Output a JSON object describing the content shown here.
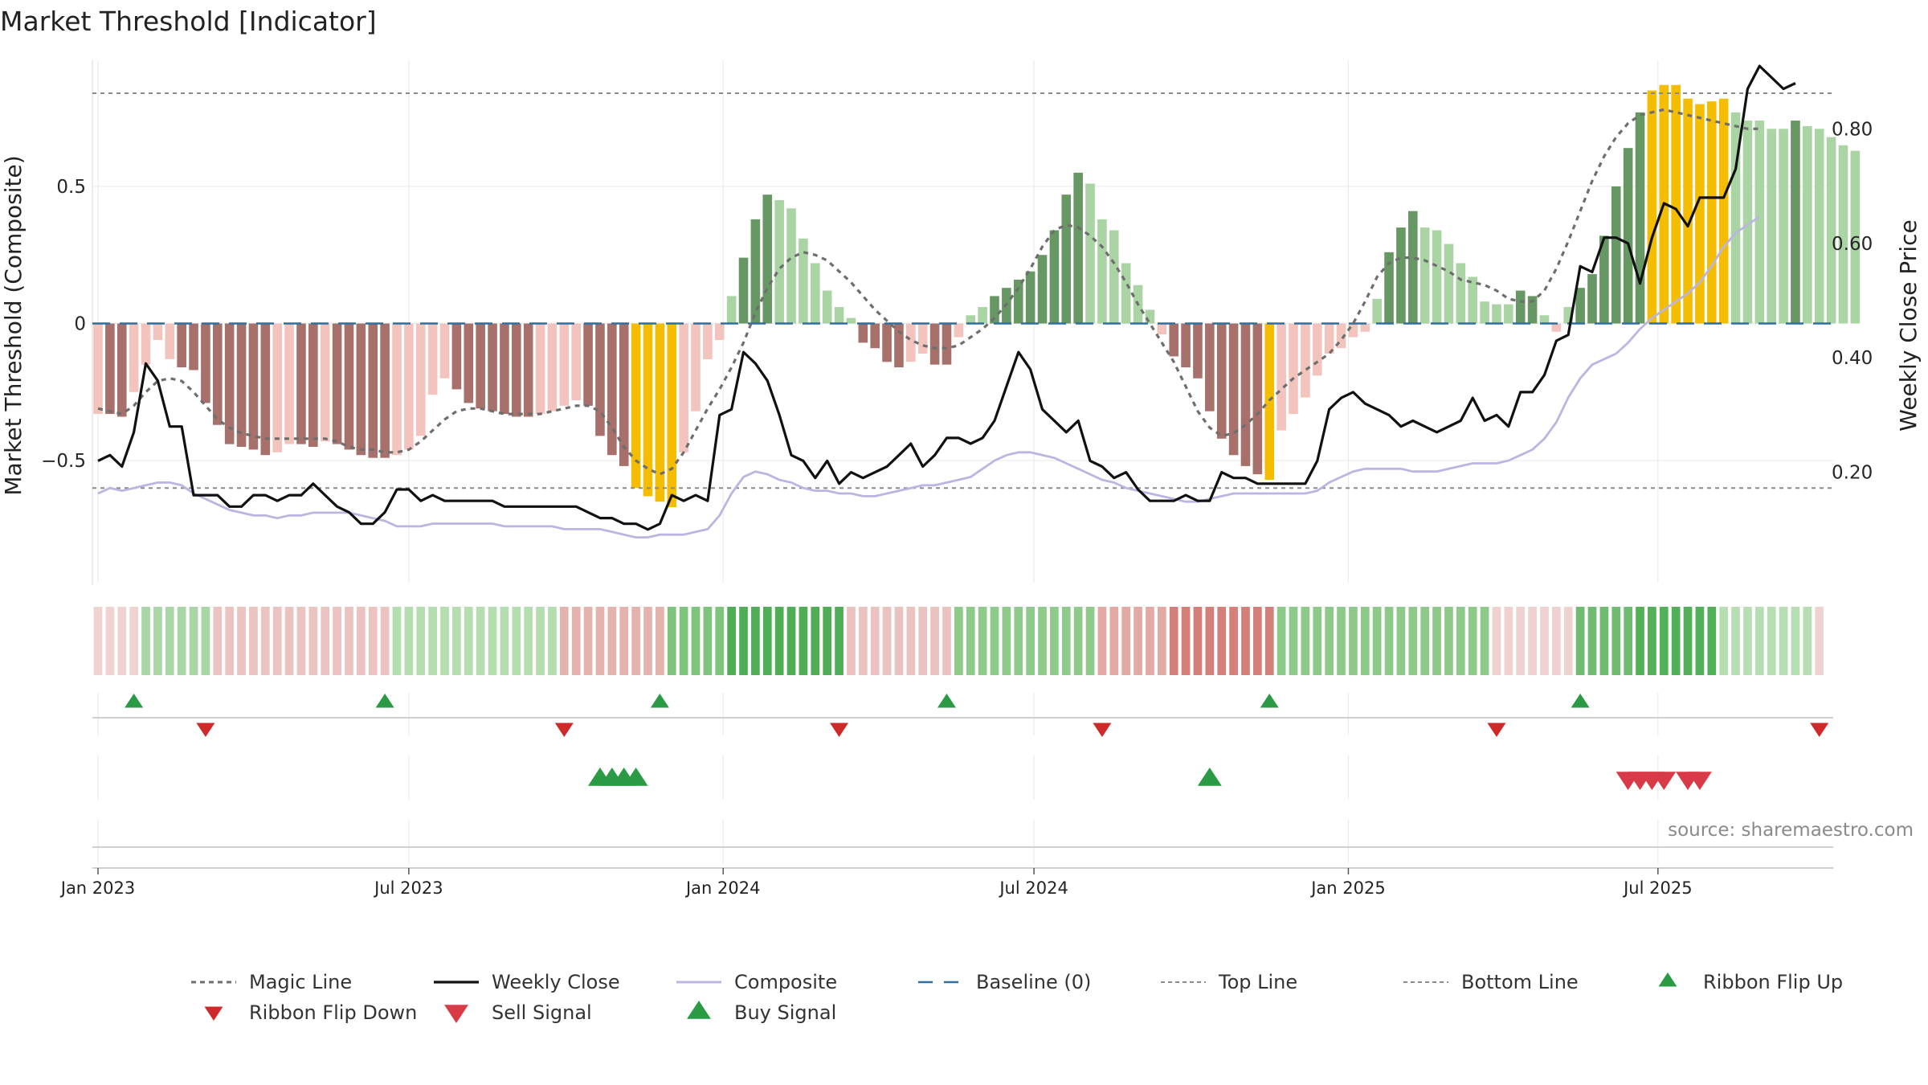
{
  "chart_data": {
    "type": "bar",
    "title": "Market Threshold [Indicator]",
    "ylabel": "Market Threshold (Composite)",
    "y2label": "Weekly Close Price",
    "ylim": [
      -0.96,
      0.96
    ],
    "y2lim": [
      0.0,
      0.92
    ],
    "yticks": [
      {
        "v": 0.5,
        "label": "0.5"
      },
      {
        "v": 0,
        "label": "0"
      },
      {
        "v": -0.5,
        "label": "−0.5"
      }
    ],
    "y2ticks": [
      {
        "v": 0.8,
        "label": "0.80"
      },
      {
        "v": 0.6,
        "label": "0.60"
      },
      {
        "v": 0.4,
        "label": "0.40"
      },
      {
        "v": 0.2,
        "label": "0.20"
      }
    ],
    "xticks": [
      {
        "w": 0,
        "label": "Jan 2023"
      },
      {
        "w": 26,
        "label": "Jul 2023"
      },
      {
        "w": 52.3,
        "label": "Jan 2024"
      },
      {
        "w": 78.3,
        "label": "Jul 2024"
      },
      {
        "w": 104.6,
        "label": "Jan 2025"
      },
      {
        "w": 130.5,
        "label": "Jul 2025"
      }
    ],
    "top_line": 0.84,
    "bottom_line": -0.6,
    "composite": [
      -0.62,
      -0.6,
      -0.61,
      -0.6,
      -0.59,
      -0.58,
      -0.58,
      -0.59,
      -0.62,
      -0.64,
      -0.66,
      -0.68,
      -0.69,
      -0.7,
      -0.7,
      -0.71,
      -0.7,
      -0.7,
      -0.69,
      -0.69,
      -0.69,
      -0.69,
      -0.7,
      -0.71,
      -0.72,
      -0.74,
      -0.74,
      -0.74,
      -0.73,
      -0.73,
      -0.73,
      -0.73,
      -0.73,
      -0.73,
      -0.74,
      -0.74,
      -0.74,
      -0.74,
      -0.74,
      -0.75,
      -0.75,
      -0.75,
      -0.75,
      -0.76,
      -0.77,
      -0.78,
      -0.78,
      -0.77,
      -0.77,
      -0.77,
      -0.76,
      -0.75,
      -0.7,
      -0.62,
      -0.56,
      -0.54,
      -0.55,
      -0.57,
      -0.58,
      -0.6,
      -0.61,
      -0.61,
      -0.62,
      -0.62,
      -0.63,
      -0.63,
      -0.62,
      -0.61,
      -0.6,
      -0.59,
      -0.59,
      -0.58,
      -0.57,
      -0.56,
      -0.53,
      -0.5,
      -0.48,
      -0.47,
      -0.47,
      -0.48,
      -0.49,
      -0.51,
      -0.53,
      -0.55,
      -0.57,
      -0.58,
      -0.6,
      -0.61,
      -0.62,
      -0.63,
      -0.64,
      -0.65,
      -0.65,
      -0.64,
      -0.63,
      -0.62,
      -0.62,
      -0.62,
      -0.62,
      -0.62,
      -0.62,
      -0.62,
      -0.61,
      -0.58,
      -0.56,
      -0.54,
      -0.53,
      -0.53,
      -0.53,
      -0.53,
      -0.54,
      -0.54,
      -0.54,
      -0.53,
      -0.52,
      -0.51,
      -0.51,
      -0.51,
      -0.5,
      -0.48,
      -0.46,
      -0.42,
      -0.36,
      -0.27,
      -0.2,
      -0.15,
      -0.13,
      -0.11,
      -0.07,
      -0.02,
      0.02,
      0.05,
      0.08,
      0.11,
      0.15,
      0.21,
      0.28,
      0.33,
      0.36,
      0.39
    ],
    "magic_line": [
      -0.31,
      -0.32,
      -0.33,
      -0.3,
      -0.25,
      -0.21,
      -0.2,
      -0.21,
      -0.25,
      -0.3,
      -0.35,
      -0.38,
      -0.4,
      -0.41,
      -0.42,
      -0.42,
      -0.42,
      -0.42,
      -0.42,
      -0.42,
      -0.43,
      -0.45,
      -0.46,
      -0.46,
      -0.47,
      -0.47,
      -0.46,
      -0.43,
      -0.39,
      -0.35,
      -0.32,
      -0.31,
      -0.31,
      -0.32,
      -0.33,
      -0.33,
      -0.33,
      -0.33,
      -0.32,
      -0.31,
      -0.3,
      -0.3,
      -0.32,
      -0.38,
      -0.45,
      -0.5,
      -0.53,
      -0.55,
      -0.53,
      -0.47,
      -0.39,
      -0.31,
      -0.24,
      -0.16,
      -0.07,
      0.04,
      0.13,
      0.2,
      0.24,
      0.26,
      0.25,
      0.23,
      0.19,
      0.15,
      0.1,
      0.05,
      0.01,
      -0.03,
      -0.06,
      -0.08,
      -0.09,
      -0.09,
      -0.08,
      -0.05,
      -0.02,
      0.02,
      0.07,
      0.13,
      0.2,
      0.28,
      0.34,
      0.36,
      0.35,
      0.32,
      0.28,
      0.22,
      0.15,
      0.07,
      0.0,
      -0.07,
      -0.14,
      -0.23,
      -0.32,
      -0.38,
      -0.41,
      -0.4,
      -0.37,
      -0.33,
      -0.28,
      -0.24,
      -0.2,
      -0.17,
      -0.14,
      -0.11,
      -0.06,
      0.0,
      0.08,
      0.17,
      0.22,
      0.24,
      0.24,
      0.23,
      0.21,
      0.19,
      0.16,
      0.15,
      0.14,
      0.12,
      0.09,
      0.08,
      0.08,
      0.12,
      0.2,
      0.3,
      0.41,
      0.52,
      0.61,
      0.68,
      0.73,
      0.76,
      0.77,
      0.78,
      0.77,
      0.76,
      0.75,
      0.74,
      0.73,
      0.72,
      0.71,
      0.71
    ],
    "price_series": [
      0.22,
      0.23,
      0.21,
      0.27,
      0.39,
      0.36,
      0.28,
      0.28,
      0.16,
      0.16,
      0.16,
      0.14,
      0.14,
      0.16,
      0.16,
      0.15,
      0.16,
      0.16,
      0.18,
      0.16,
      0.14,
      0.13,
      0.11,
      0.11,
      0.13,
      0.17,
      0.17,
      0.15,
      0.16,
      0.15,
      0.15,
      0.15,
      0.15,
      0.15,
      0.14,
      0.14,
      0.14,
      0.14,
      0.14,
      0.14,
      0.14,
      0.13,
      0.12,
      0.12,
      0.11,
      0.11,
      0.1,
      0.11,
      0.16,
      0.15,
      0.16,
      0.15,
      0.3,
      0.31,
      0.41,
      0.39,
      0.36,
      0.3,
      0.23,
      0.22,
      0.19,
      0.22,
      0.18,
      0.2,
      0.19,
      0.2,
      0.21,
      0.23,
      0.25,
      0.21,
      0.23,
      0.26,
      0.26,
      0.25,
      0.26,
      0.29,
      0.35,
      0.41,
      0.38,
      0.31,
      0.29,
      0.27,
      0.29,
      0.22,
      0.21,
      0.19,
      0.2,
      0.17,
      0.15,
      0.15,
      0.15,
      0.16,
      0.15,
      0.15,
      0.2,
      0.19,
      0.19,
      0.18,
      0.18,
      0.18,
      0.18,
      0.18,
      0.22,
      0.31,
      0.33,
      0.34,
      0.32,
      0.31,
      0.3,
      0.28,
      0.29,
      0.28,
      0.27,
      0.28,
      0.29,
      0.33,
      0.29,
      0.3,
      0.28,
      0.34,
      0.34,
      0.37,
      0.43,
      0.44,
      0.56,
      0.55,
      0.61,
      0.61,
      0.6,
      0.53,
      0.61,
      0.67,
      0.66,
      0.63,
      0.68,
      0.68,
      0.68,
      0.73,
      0.87,
      0.91,
      0.89,
      0.87,
      0.88
    ],
    "bars": [
      {
        "v": -0.33,
        "c": "#f2c4bd"
      },
      {
        "v": -0.33,
        "c": "#a8706a"
      },
      {
        "v": -0.34,
        "c": "#a8706a"
      },
      {
        "v": -0.25,
        "c": "#f2c4bd"
      },
      {
        "v": -0.15,
        "c": "#f2c4bd"
      },
      {
        "v": -0.06,
        "c": "#f2c4bd"
      },
      {
        "v": -0.13,
        "c": "#f2c4bd"
      },
      {
        "v": -0.16,
        "c": "#a8706a"
      },
      {
        "v": -0.17,
        "c": "#a8706a"
      },
      {
        "v": -0.29,
        "c": "#a8706a"
      },
      {
        "v": -0.37,
        "c": "#a8706a"
      },
      {
        "v": -0.44,
        "c": "#a8706a"
      },
      {
        "v": -0.45,
        "c": "#a8706a"
      },
      {
        "v": -0.46,
        "c": "#a8706a"
      },
      {
        "v": -0.48,
        "c": "#a8706a"
      },
      {
        "v": -0.47,
        "c": "#f2c4bd"
      },
      {
        "v": -0.44,
        "c": "#f2c4bd"
      },
      {
        "v": -0.44,
        "c": "#a8706a"
      },
      {
        "v": -0.45,
        "c": "#a8706a"
      },
      {
        "v": -0.43,
        "c": "#f2c4bd"
      },
      {
        "v": -0.44,
        "c": "#a8706a"
      },
      {
        "v": -0.46,
        "c": "#a8706a"
      },
      {
        "v": -0.48,
        "c": "#a8706a"
      },
      {
        "v": -0.49,
        "c": "#a8706a"
      },
      {
        "v": -0.49,
        "c": "#a8706a"
      },
      {
        "v": -0.48,
        "c": "#f2c4bd"
      },
      {
        "v": -0.46,
        "c": "#f2c4bd"
      },
      {
        "v": -0.41,
        "c": "#f2c4bd"
      },
      {
        "v": -0.26,
        "c": "#f2c4bd"
      },
      {
        "v": -0.2,
        "c": "#f2c4bd"
      },
      {
        "v": -0.24,
        "c": "#a8706a"
      },
      {
        "v": -0.29,
        "c": "#a8706a"
      },
      {
        "v": -0.31,
        "c": "#a8706a"
      },
      {
        "v": -0.32,
        "c": "#a8706a"
      },
      {
        "v": -0.33,
        "c": "#a8706a"
      },
      {
        "v": -0.34,
        "c": "#a8706a"
      },
      {
        "v": -0.34,
        "c": "#a8706a"
      },
      {
        "v": -0.33,
        "c": "#f2c4bd"
      },
      {
        "v": -0.32,
        "c": "#f2c4bd"
      },
      {
        "v": -0.3,
        "c": "#f2c4bd"
      },
      {
        "v": -0.28,
        "c": "#f2c4bd"
      },
      {
        "v": -0.3,
        "c": "#a8706a"
      },
      {
        "v": -0.41,
        "c": "#a8706a"
      },
      {
        "v": -0.48,
        "c": "#a8706a"
      },
      {
        "v": -0.52,
        "c": "#a8706a"
      },
      {
        "v": -0.6,
        "c": "#f5bd00"
      },
      {
        "v": -0.63,
        "c": "#f5bd00"
      },
      {
        "v": -0.65,
        "c": "#f5bd00"
      },
      {
        "v": -0.67,
        "c": "#f5bd00"
      },
      {
        "v": -0.47,
        "c": "#f2c4bd"
      },
      {
        "v": -0.32,
        "c": "#f2c4bd"
      },
      {
        "v": -0.13,
        "c": "#f2c4bd"
      },
      {
        "v": -0.06,
        "c": "#f2c4bd"
      },
      {
        "v": 0.1,
        "c": "#abd4a4"
      },
      {
        "v": 0.24,
        "c": "#679762"
      },
      {
        "v": 0.38,
        "c": "#679762"
      },
      {
        "v": 0.47,
        "c": "#679762"
      },
      {
        "v": 0.45,
        "c": "#abd4a4"
      },
      {
        "v": 0.42,
        "c": "#abd4a4"
      },
      {
        "v": 0.31,
        "c": "#abd4a4"
      },
      {
        "v": 0.22,
        "c": "#abd4a4"
      },
      {
        "v": 0.12,
        "c": "#abd4a4"
      },
      {
        "v": 0.06,
        "c": "#abd4a4"
      },
      {
        "v": 0.02,
        "c": "#abd4a4"
      },
      {
        "v": -0.07,
        "c": "#a8706a"
      },
      {
        "v": -0.09,
        "c": "#a8706a"
      },
      {
        "v": -0.14,
        "c": "#a8706a"
      },
      {
        "v": -0.16,
        "c": "#a8706a"
      },
      {
        "v": -0.14,
        "c": "#f2c4bd"
      },
      {
        "v": -0.11,
        "c": "#f2c4bd"
      },
      {
        "v": -0.15,
        "c": "#a8706a"
      },
      {
        "v": -0.15,
        "c": "#a8706a"
      },
      {
        "v": -0.05,
        "c": "#f2c4bd"
      },
      {
        "v": 0.03,
        "c": "#abd4a4"
      },
      {
        "v": 0.06,
        "c": "#abd4a4"
      },
      {
        "v": 0.1,
        "c": "#679762"
      },
      {
        "v": 0.13,
        "c": "#679762"
      },
      {
        "v": 0.16,
        "c": "#679762"
      },
      {
        "v": 0.19,
        "c": "#679762"
      },
      {
        "v": 0.25,
        "c": "#679762"
      },
      {
        "v": 0.34,
        "c": "#679762"
      },
      {
        "v": 0.47,
        "c": "#679762"
      },
      {
        "v": 0.55,
        "c": "#679762"
      },
      {
        "v": 0.51,
        "c": "#abd4a4"
      },
      {
        "v": 0.38,
        "c": "#abd4a4"
      },
      {
        "v": 0.34,
        "c": "#abd4a4"
      },
      {
        "v": 0.22,
        "c": "#abd4a4"
      },
      {
        "v": 0.14,
        "c": "#abd4a4"
      },
      {
        "v": 0.05,
        "c": "#abd4a4"
      },
      {
        "v": -0.04,
        "c": "#f2c4bd"
      },
      {
        "v": -0.12,
        "c": "#a8706a"
      },
      {
        "v": -0.16,
        "c": "#a8706a"
      },
      {
        "v": -0.2,
        "c": "#a8706a"
      },
      {
        "v": -0.32,
        "c": "#a8706a"
      },
      {
        "v": -0.42,
        "c": "#a8706a"
      },
      {
        "v": -0.48,
        "c": "#a8706a"
      },
      {
        "v": -0.52,
        "c": "#a8706a"
      },
      {
        "v": -0.55,
        "c": "#a8706a"
      },
      {
        "v": -0.57,
        "c": "#f5bd00"
      },
      {
        "v": -0.39,
        "c": "#f2c4bd"
      },
      {
        "v": -0.33,
        "c": "#f2c4bd"
      },
      {
        "v": -0.27,
        "c": "#f2c4bd"
      },
      {
        "v": -0.19,
        "c": "#f2c4bd"
      },
      {
        "v": -0.11,
        "c": "#f2c4bd"
      },
      {
        "v": -0.09,
        "c": "#f2c4bd"
      },
      {
        "v": -0.05,
        "c": "#f2c4bd"
      },
      {
        "v": -0.03,
        "c": "#f2c4bd"
      },
      {
        "v": 0.09,
        "c": "#abd4a4"
      },
      {
        "v": 0.26,
        "c": "#679762"
      },
      {
        "v": 0.35,
        "c": "#679762"
      },
      {
        "v": 0.41,
        "c": "#679762"
      },
      {
        "v": 0.35,
        "c": "#abd4a4"
      },
      {
        "v": 0.34,
        "c": "#abd4a4"
      },
      {
        "v": 0.29,
        "c": "#abd4a4"
      },
      {
        "v": 0.22,
        "c": "#abd4a4"
      },
      {
        "v": 0.17,
        "c": "#abd4a4"
      },
      {
        "v": 0.08,
        "c": "#abd4a4"
      },
      {
        "v": 0.07,
        "c": "#abd4a4"
      },
      {
        "v": 0.07,
        "c": "#abd4a4"
      },
      {
        "v": 0.12,
        "c": "#679762"
      },
      {
        "v": 0.1,
        "c": "#679762"
      },
      {
        "v": 0.03,
        "c": "#abd4a4"
      },
      {
        "v": -0.03,
        "c": "#f2c4bd"
      },
      {
        "v": 0.06,
        "c": "#abd4a4"
      },
      {
        "v": 0.13,
        "c": "#679762"
      },
      {
        "v": 0.18,
        "c": "#679762"
      },
      {
        "v": 0.32,
        "c": "#679762"
      },
      {
        "v": 0.5,
        "c": "#679762"
      },
      {
        "v": 0.64,
        "c": "#679762"
      },
      {
        "v": 0.77,
        "c": "#679762"
      },
      {
        "v": 0.85,
        "c": "#f5bd00"
      },
      {
        "v": 0.87,
        "c": "#f5bd00"
      },
      {
        "v": 0.87,
        "c": "#f5bd00"
      },
      {
        "v": 0.82,
        "c": "#f5bd00"
      },
      {
        "v": 0.8,
        "c": "#f5bd00"
      },
      {
        "v": 0.81,
        "c": "#f5bd00"
      },
      {
        "v": 0.82,
        "c": "#f5bd00"
      },
      {
        "v": 0.77,
        "c": "#abd4a4"
      },
      {
        "v": 0.74,
        "c": "#abd4a4"
      },
      {
        "v": 0.74,
        "c": "#abd4a4"
      },
      {
        "v": 0.71,
        "c": "#abd4a4"
      },
      {
        "v": 0.71,
        "c": "#abd4a4"
      },
      {
        "v": 0.74,
        "c": "#679762"
      },
      {
        "v": 0.72,
        "c": "#abd4a4"
      },
      {
        "v": 0.71,
        "c": "#abd4a4"
      },
      {
        "v": 0.68,
        "c": "#abd4a4"
      },
      {
        "v": 0.65,
        "c": "#abd4a4"
      },
      {
        "v": 0.63,
        "c": "#abd4a4"
      }
    ],
    "ribbon": [
      {
        "w0": 0,
        "w1": 4,
        "c": "#efd3d0"
      },
      {
        "w0": 4,
        "w1": 10,
        "c": "#a9d6a6"
      },
      {
        "w0": 10,
        "w1": 25,
        "c": "#ebc3c0"
      },
      {
        "w0": 25,
        "w1": 39,
        "c": "#b4ddb0"
      },
      {
        "w0": 39,
        "w1": 48,
        "c": "#e5b3ae"
      },
      {
        "w0": 48,
        "w1": 53,
        "c": "#7fc47d"
      },
      {
        "w0": 53,
        "w1": 63,
        "c": "#4fae55"
      },
      {
        "w0": 63,
        "w1": 72,
        "c": "#eac2bf"
      },
      {
        "w0": 72,
        "w1": 84,
        "c": "#8ecb8b"
      },
      {
        "w0": 84,
        "w1": 90,
        "c": "#e3aaa5"
      },
      {
        "w0": 90,
        "w1": 99,
        "c": "#d57f7a"
      },
      {
        "w0": 99,
        "w1": 117,
        "c": "#8dca8a"
      },
      {
        "w0": 117,
        "w1": 124,
        "c": "#efd2cf"
      },
      {
        "w0": 124,
        "w1": 129,
        "c": "#6fbb70"
      },
      {
        "w0": 129,
        "w1": 136,
        "c": "#52b058"
      },
      {
        "w0": 136,
        "w1": 144,
        "c": "#b6deb2"
      },
      {
        "w0": 144,
        "w1": 145,
        "c": "#efd3d0"
      }
    ],
    "ribbon_flip_up": [
      3,
      24,
      47,
      71,
      98,
      124
    ],
    "ribbon_flip_down": [
      9,
      39,
      62,
      84,
      117,
      144
    ],
    "buy_signal": [
      42,
      43,
      44,
      45,
      93
    ],
    "sell_signal": [
      128,
      129,
      130,
      131,
      133,
      134
    ],
    "source": "source: sharemaestro.com",
    "legend": [
      {
        "key": "magic",
        "label": "Magic Line"
      },
      {
        "key": "close",
        "label": "Weekly Close"
      },
      {
        "key": "composite",
        "label": "Composite"
      },
      {
        "key": "baseline",
        "label": "Baseline (0)"
      },
      {
        "key": "top",
        "label": "Top Line"
      },
      {
        "key": "bottom",
        "label": "Bottom Line"
      },
      {
        "key": "flip_up",
        "label": "Ribbon Flip Up"
      },
      {
        "key": "flip_down",
        "label": "Ribbon Flip Down"
      },
      {
        "key": "sell",
        "label": "Sell Signal"
      },
      {
        "key": "buy",
        "label": "Buy Signal"
      }
    ],
    "colors": {
      "magic_line": "#6e6e6e",
      "close": "#111111",
      "composite": "#bcb5e2",
      "baseline": "#2f6f9e",
      "ref_lines": "#8a8a8a",
      "flip_up": "#2a9a44",
      "flip_down": "#cf2a2a",
      "buy": "#2a9a44",
      "sell": "#d93a48",
      "grid": "#ebebeb"
    }
  }
}
